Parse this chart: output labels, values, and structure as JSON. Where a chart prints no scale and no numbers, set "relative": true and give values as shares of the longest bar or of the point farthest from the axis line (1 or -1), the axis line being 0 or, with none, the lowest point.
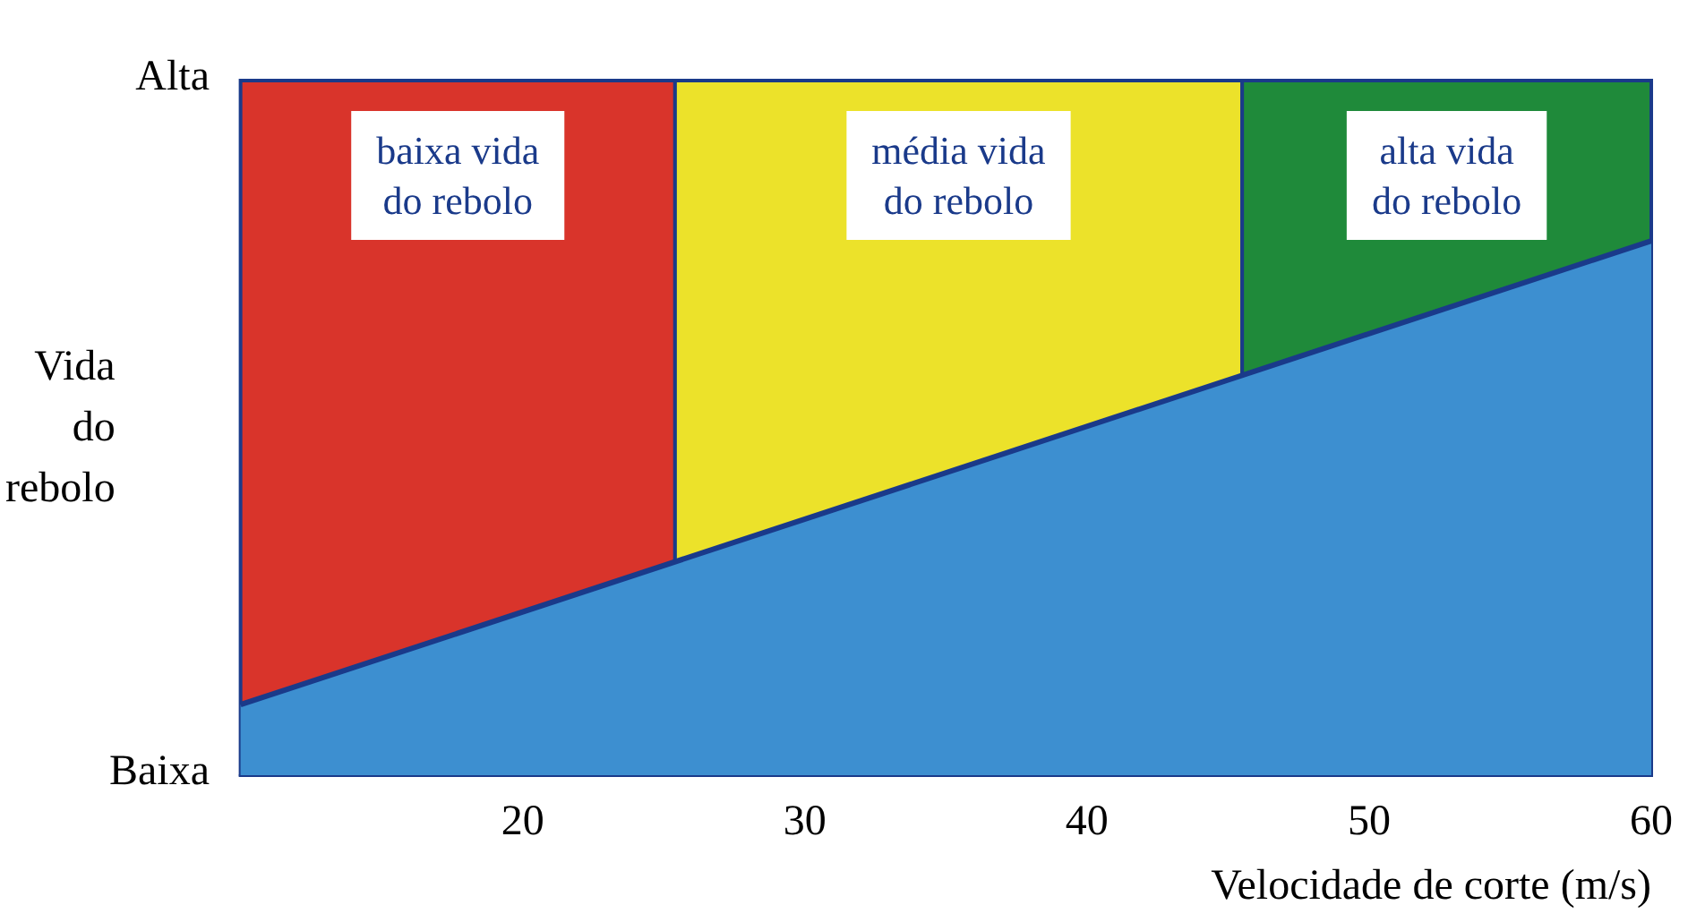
{
  "chart_data": {
    "type": "area",
    "xlabel": "Velocidade de corte (m/s)",
    "ylabel": "Vida\ndo\nrebolo",
    "x": [
      10,
      60
    ],
    "series": [
      {
        "color": "#3d8fd0",
        "values": [
          0.132,
          1
        ]
      }
    ],
    "relative": true,
    "xlim": [
      10,
      60
    ],
    "xticks": [
      20,
      30,
      40,
      50,
      60
    ],
    "annotations": [
      "Baixa",
      "Alta"
    ],
    "bands": [
      {
        "axis": "x",
        "from": 10,
        "to": 25.4,
        "label": "baixa vida\ndo rebolo",
        "color": "#d9342b"
      },
      {
        "axis": "x",
        "from": 25.4,
        "to": 45.5,
        "label": "média vida\ndo rebolo",
        "color": "#ece22a"
      },
      {
        "axis": "x",
        "from": 45.5,
        "to": 60,
        "label": "alta vida\ndo rebolo",
        "color": "#1f8a3a"
      }
    ],
    "marker": "none",
    "line_style": "solid"
  }
}
